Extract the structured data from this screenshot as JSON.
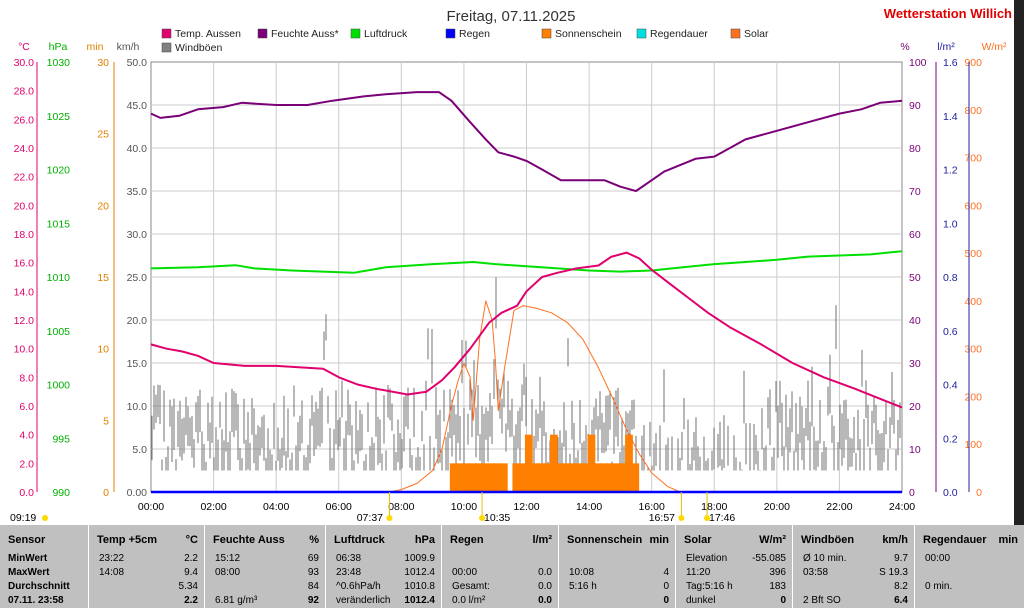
{
  "title": "Freitag, 07.11.2025",
  "station": "Wetterstation Willich",
  "legend": [
    {
      "name": "Temp. Aussen",
      "color": "#e0006e"
    },
    {
      "name": "Feuchte Auss*",
      "color": "#7a0078"
    },
    {
      "name": "Luftdruck",
      "color": "#00e000"
    },
    {
      "name": "Regen",
      "color": "#0000ff"
    },
    {
      "name": "Sonnenschein",
      "color": "#ff8000"
    },
    {
      "name": "Regendauer",
      "color": "#00e0e0"
    },
    {
      "name": "Solar",
      "color": "#ff7020"
    },
    {
      "name": "Windböen",
      "color": "#808080"
    }
  ],
  "units": {
    "temp": "°C",
    "press": "hPa",
    "sun": "min",
    "wind": "km/h",
    "hum": "%",
    "rain": "l/m²",
    "solar": "W/m²"
  },
  "axes": {
    "temp": [
      "0.0",
      "2.0",
      "4.0",
      "6.0",
      "8.0",
      "10.0",
      "12.0",
      "14.0",
      "16.0",
      "18.0",
      "20.0",
      "22.0",
      "24.0",
      "26.0",
      "28.0",
      "30.0"
    ],
    "press": [
      "990",
      "995",
      "1000",
      "1005",
      "1010",
      "1015",
      "1020",
      "1025",
      "1030"
    ],
    "sun": [
      "0",
      "5",
      "10",
      "15",
      "20",
      "25",
      "30"
    ],
    "wind": [
      "0.00",
      "5.0",
      "10.0",
      "15.0",
      "20.0",
      "25.0",
      "30.0",
      "35.0",
      "40.0",
      "45.0",
      "50.0"
    ],
    "hum": [
      "0",
      "10",
      "20",
      "30",
      "40",
      "50",
      "60",
      "70",
      "80",
      "90",
      "100"
    ],
    "rain": [
      "0.0",
      "0.2",
      "0.4",
      "0.6",
      "0.8",
      "1.0",
      "1.2",
      "1.4",
      "1.6"
    ],
    "solar": [
      "0",
      "100",
      "200",
      "300",
      "400",
      "500",
      "600",
      "700",
      "800",
      "900"
    ],
    "x": [
      "00:00",
      "02:00",
      "04:00",
      "06:00",
      "08:00",
      "10:00",
      "12:00",
      "14:00",
      "16:00",
      "18:00",
      "20:00",
      "22:00",
      "24:00"
    ]
  },
  "markers": {
    "left_time": "09:19",
    "sunrise": "07:37",
    "solar_noon": "10:35",
    "sunset": "16:57",
    "evening": "17:46"
  },
  "chart_data": {
    "type": "line",
    "x_unit": "hours",
    "xlim": [
      0,
      24
    ],
    "series": [
      {
        "name": "Feuchte Auss*",
        "axis": "hum",
        "ylim": [
          0,
          100
        ],
        "points": [
          [
            0,
            88
          ],
          [
            0.3,
            87
          ],
          [
            0.9,
            87.5
          ],
          [
            1.5,
            89
          ],
          [
            2.3,
            89.5
          ],
          [
            2.9,
            90.5
          ],
          [
            4.0,
            90
          ],
          [
            5.0,
            90
          ],
          [
            5.8,
            91
          ],
          [
            6.8,
            92
          ],
          [
            7.5,
            92.5
          ],
          [
            8.5,
            93
          ],
          [
            9.2,
            93
          ],
          [
            9.6,
            91
          ],
          [
            10.2,
            86
          ],
          [
            10.7,
            82
          ],
          [
            11.1,
            79
          ],
          [
            11.6,
            78
          ],
          [
            12.0,
            77
          ],
          [
            12.5,
            75
          ],
          [
            13.1,
            72.5
          ],
          [
            14.0,
            72.5
          ],
          [
            14.5,
            72.5
          ],
          [
            15.0,
            71
          ],
          [
            15.5,
            70
          ],
          [
            15.9,
            72
          ],
          [
            16.4,
            74.5
          ],
          [
            16.9,
            76
          ],
          [
            17.4,
            77.5
          ],
          [
            18.0,
            78
          ],
          [
            18.5,
            80
          ],
          [
            19.0,
            82
          ],
          [
            20.0,
            84
          ],
          [
            21.0,
            86
          ],
          [
            22.0,
            88
          ],
          [
            22.7,
            89
          ],
          [
            23.3,
            90.5
          ],
          [
            24,
            91
          ]
        ]
      },
      {
        "name": "Luftdruck",
        "axis": "press",
        "ylim": [
          990,
          1030
        ],
        "points": [
          [
            0,
            1010.8
          ],
          [
            1.5,
            1010.9
          ],
          [
            2.7,
            1011.1
          ],
          [
            3.3,
            1010.8
          ],
          [
            4.5,
            1010.6
          ],
          [
            5.5,
            1010.5
          ],
          [
            6.5,
            1010.4
          ],
          [
            7.5,
            1010.9
          ],
          [
            9.0,
            1011.2
          ],
          [
            10.3,
            1011.4
          ],
          [
            11.0,
            1011.2
          ],
          [
            12.0,
            1011.0
          ],
          [
            13.0,
            1010.8
          ],
          [
            14.0,
            1010.6
          ],
          [
            15.0,
            1010.5
          ],
          [
            16.0,
            1010.6
          ],
          [
            17.0,
            1010.9
          ],
          [
            18.0,
            1011.2
          ],
          [
            19.0,
            1011.4
          ],
          [
            20.0,
            1011.6
          ],
          [
            21.0,
            1011.9
          ],
          [
            22.0,
            1012.0
          ],
          [
            23.0,
            1012.1
          ],
          [
            24,
            1012.4
          ]
        ]
      },
      {
        "name": "Temp. Aussen",
        "axis": "temp",
        "ylim": [
          0,
          30
        ],
        "points": [
          [
            0,
            10.3
          ],
          [
            0.5,
            10.0
          ],
          [
            1.0,
            9.8
          ],
          [
            1.5,
            9.5
          ],
          [
            2.0,
            9.0
          ],
          [
            3.0,
            8.8
          ],
          [
            4.0,
            8.8
          ],
          [
            5.5,
            8.6
          ],
          [
            6.0,
            8.0
          ],
          [
            6.6,
            7.5
          ],
          [
            7.2,
            7.2
          ],
          [
            8.2,
            6.8
          ],
          [
            8.8,
            7.0
          ],
          [
            9.3,
            7.8
          ],
          [
            9.7,
            8.7
          ],
          [
            10.2,
            10.0
          ],
          [
            10.8,
            11.8
          ],
          [
            11.2,
            12.5
          ],
          [
            11.7,
            13.0
          ],
          [
            12.0,
            14.0
          ],
          [
            12.5,
            15.0
          ],
          [
            13.0,
            15.3
          ],
          [
            13.6,
            15.6
          ],
          [
            14.3,
            15.8
          ],
          [
            14.7,
            16.4
          ],
          [
            15.2,
            16.7
          ],
          [
            15.6,
            16.3
          ],
          [
            16.0,
            15.5
          ],
          [
            16.6,
            14.5
          ],
          [
            17.2,
            13.5
          ],
          [
            17.8,
            12.5
          ],
          [
            18.5,
            11.5
          ],
          [
            19.5,
            10.3
          ],
          [
            20.5,
            9.0
          ],
          [
            21.5,
            8.0
          ],
          [
            22.5,
            7.2
          ],
          [
            23.3,
            6.5
          ],
          [
            24,
            5.9
          ]
        ]
      },
      {
        "name": "Solar",
        "axis": "solar",
        "ylim": [
          0,
          900
        ],
        "points": [
          [
            7.6,
            0
          ],
          [
            8.0,
            5
          ],
          [
            8.5,
            18
          ],
          [
            9.0,
            45
          ],
          [
            9.3,
            90
          ],
          [
            9.6,
            180
          ],
          [
            9.8,
            230
          ],
          [
            10.0,
            270
          ],
          [
            10.2,
            240
          ],
          [
            10.3,
            150
          ],
          [
            10.5,
            320
          ],
          [
            10.7,
            400
          ],
          [
            10.9,
            360
          ],
          [
            11.0,
            280
          ],
          [
            11.1,
            170
          ],
          [
            11.3,
            260
          ],
          [
            11.6,
            380
          ],
          [
            11.9,
            390
          ],
          [
            12.3,
            385
          ],
          [
            12.8,
            375
          ],
          [
            13.3,
            355
          ],
          [
            13.8,
            320
          ],
          [
            14.3,
            260
          ],
          [
            14.8,
            190
          ],
          [
            15.2,
            130
          ],
          [
            15.6,
            80
          ],
          [
            16.0,
            40
          ],
          [
            16.5,
            12
          ],
          [
            16.9,
            0
          ]
        ]
      },
      {
        "name": "Sonnenschein",
        "axis": "sun",
        "ylim": [
          0,
          30
        ],
        "kind": "bar",
        "points": [
          [
            9.6,
            2
          ],
          [
            9.8,
            2
          ],
          [
            10.0,
            2
          ],
          [
            10.2,
            2
          ],
          [
            10.4,
            2
          ],
          [
            10.6,
            2
          ],
          [
            10.8,
            2
          ],
          [
            11.0,
            2
          ],
          [
            11.2,
            2
          ],
          [
            11.6,
            2
          ],
          [
            11.8,
            2
          ],
          [
            12.0,
            4
          ],
          [
            12.2,
            2
          ],
          [
            12.4,
            2
          ],
          [
            12.6,
            2
          ],
          [
            12.8,
            4
          ],
          [
            13.0,
            2
          ],
          [
            13.2,
            2
          ],
          [
            13.4,
            2
          ],
          [
            13.6,
            2
          ],
          [
            13.8,
            2
          ],
          [
            14.0,
            4
          ],
          [
            14.2,
            2
          ],
          [
            14.4,
            2
          ],
          [
            14.6,
            2
          ],
          [
            14.8,
            2
          ],
          [
            15.0,
            2
          ],
          [
            15.2,
            4
          ],
          [
            15.4,
            2
          ]
        ]
      },
      {
        "name": "Regen",
        "axis": "rain",
        "ylim": [
          0,
          1.6
        ],
        "points": [
          [
            0,
            0
          ],
          [
            24,
            0
          ]
        ]
      },
      {
        "name": "Windböen",
        "axis": "wind",
        "ylim": [
          0,
          50
        ],
        "kind": "bars",
        "note": "noisy gust readings, typical 3–13 km/h"
      }
    ]
  },
  "table": [
    {
      "title": "Sensor",
      "unit": "",
      "rows": [
        [
          "MinWert",
          "",
          ""
        ],
        [
          "MaxWert",
          "",
          ""
        ],
        [
          "Durchschnitt",
          "",
          ""
        ],
        [
          "07.11. 23:58",
          "",
          ""
        ]
      ]
    },
    {
      "title": "Temp +5cm",
      "unit": "°C",
      "rows": [
        [
          "23:22",
          "",
          "2.2"
        ],
        [
          "14:08",
          "",
          "9.4"
        ],
        [
          "",
          "",
          "5.34"
        ],
        [
          "",
          "",
          "2.2"
        ]
      ]
    },
    {
      "title": "Feuchte Auss",
      "unit": "%",
      "rows": [
        [
          "15:12",
          "",
          "69"
        ],
        [
          "08:00",
          "",
          "93"
        ],
        [
          "",
          "",
          "84"
        ],
        [
          "6.81 g/m³",
          "",
          "92"
        ]
      ]
    },
    {
      "title": "Luftdruck",
      "unit": "hPa",
      "rows": [
        [
          "06:38",
          "",
          "1009.9"
        ],
        [
          "23:48",
          "",
          "1012.4"
        ],
        [
          "^0.6hPa/h",
          "",
          "1010.8"
        ],
        [
          "veränderlich",
          "",
          "1012.4"
        ]
      ]
    },
    {
      "title": "Regen",
      "unit": "l/m²",
      "rows": [
        [
          "",
          "",
          ""
        ],
        [
          "00:00",
          "",
          "0.0"
        ],
        [
          "Gesamt:",
          "",
          "0.0"
        ],
        [
          "0.0 l/m²",
          "",
          "0.0"
        ]
      ]
    },
    {
      "title": "Sonnenschein",
      "unit": "min",
      "rows": [
        [
          "",
          "",
          ""
        ],
        [
          "10:08",
          "",
          "4"
        ],
        [
          "5:16 h",
          "",
          "0"
        ],
        [
          "",
          "",
          "0"
        ]
      ]
    },
    {
      "title": "Solar",
      "unit": "W/m²",
      "rows": [
        [
          "Elevation",
          "",
          "-55.085"
        ],
        [
          "11:20",
          "",
          "396"
        ],
        [
          "Tag:5:16 h",
          "",
          "183"
        ],
        [
          "dunkel",
          "",
          "0"
        ]
      ]
    },
    {
      "title": "Windböen",
      "unit": "km/h",
      "rows": [
        [
          "Ø 10 min.",
          "",
          "9.7"
        ],
        [
          "03:58",
          "",
          "S 19.3"
        ],
        [
          "",
          "",
          "8.2"
        ],
        [
          "2 Bft SO",
          "",
          "6.4"
        ]
      ]
    },
    {
      "title": "Regendauer",
      "unit": "min",
      "rows": [
        [
          "00:00",
          "",
          ""
        ],
        [
          "",
          "",
          ""
        ],
        [
          "0 min.",
          "",
          ""
        ],
        [
          "",
          "",
          ""
        ]
      ]
    }
  ]
}
